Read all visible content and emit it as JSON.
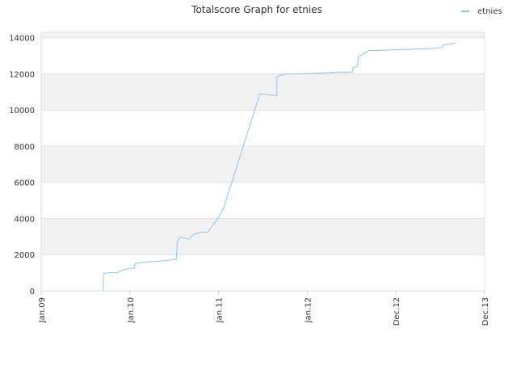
{
  "chart_data": {
    "type": "line",
    "title": "Totalscore Graph for etnies",
    "x": [
      8.4,
      8.4,
      9.0,
      10.3,
      11.0,
      11.5,
      12.2,
      12.6,
      12.7,
      13.2,
      14.6,
      16.3,
      17.4,
      18.3,
      18.4,
      18.8,
      20.0,
      20.3,
      20.8,
      21.7,
      22.5,
      23.9,
      24.7,
      29.6,
      30.8,
      31.9,
      31.9,
      32.5,
      33.4,
      35.1,
      38.1,
      40.3,
      42.1,
      42.2,
      42.8,
      42.9,
      43.6,
      44.4,
      45.8,
      49.1,
      52.3,
      54.2,
      54.4,
      55.2,
      56.0
    ],
    "series": [
      {
        "name": "etnies",
        "color": "#8ec3ec",
        "values": [
          0,
          950,
          1000,
          1000,
          1150,
          1200,
          1250,
          1250,
          1500,
          1550,
          1600,
          1650,
          1700,
          1750,
          2700,
          3000,
          2850,
          3000,
          3150,
          3250,
          3250,
          4000,
          4600,
          10900,
          10850,
          10800,
          11850,
          11950,
          12000,
          12000,
          12050,
          12100,
          12100,
          12350,
          12400,
          12950,
          13100,
          13300,
          13300,
          13350,
          13400,
          13450,
          13600,
          13650,
          13700
        ]
      }
    ],
    "xlim": [
      0,
      60
    ],
    "xticks": [
      {
        "value": 0,
        "label": "Jan.09"
      },
      {
        "value": 12,
        "label": "Jan.10"
      },
      {
        "value": 24,
        "label": "Jan.11"
      },
      {
        "value": 36,
        "label": "Jan.12"
      },
      {
        "value": 48,
        "label": "Dec.12"
      },
      {
        "value": 60,
        "label": "Dec.13"
      }
    ],
    "ylim": [
      0,
      14300
    ],
    "yticks": [
      0,
      2000,
      4000,
      6000,
      8000,
      10000,
      12000,
      14000
    ],
    "grid": true,
    "legend": "top-right"
  }
}
